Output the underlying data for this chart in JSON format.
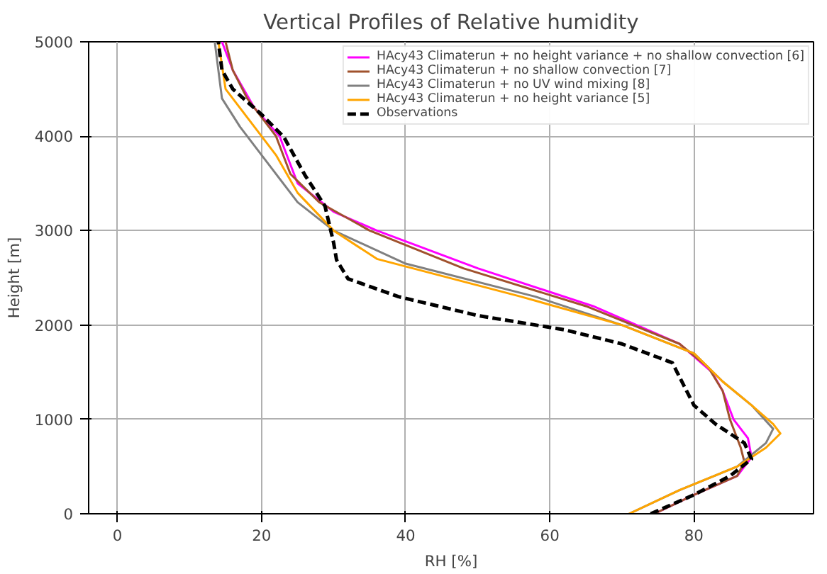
{
  "chart_data": {
    "type": "line",
    "title": "Vertical Profiles of Relative humidity",
    "xlabel": "RH [%]",
    "ylabel": "Height [m]",
    "xlim": [
      -4,
      96.6
    ],
    "ylim": [
      0,
      5000
    ],
    "xticks": [
      0,
      20,
      40,
      60,
      80
    ],
    "yticks": [
      0,
      1000,
      2000,
      3000,
      4000,
      5000
    ],
    "grid": true,
    "legend": "top right",
    "marker": "none",
    "series": [
      {
        "name": "HAcy43 Climaterun + no height variance + no shallow convection [6]",
        "color": "#ff00ff",
        "line_style": "solid",
        "x": [
          74.5,
          80,
          86,
          88,
          87.5,
          85.5,
          84,
          82.5,
          78,
          66,
          50,
          36,
          30,
          25,
          22.5,
          19,
          16,
          14.5
        ],
        "values": [
          0,
          200,
          400,
          600,
          800,
          1000,
          1300,
          1500,
          1800,
          2200,
          2600,
          3000,
          3200,
          3500,
          4000,
          4300,
          4700,
          5000
        ]
      },
      {
        "name": "HAcy43 Climaterun + no shallow convection [7]",
        "color": "#a0522d",
        "line_style": "solid",
        "x": [
          74.5,
          80,
          86,
          87,
          86.5,
          85,
          84,
          82,
          78,
          65,
          48,
          35,
          28,
          24,
          22,
          18,
          16,
          15
        ],
        "values": [
          0,
          200,
          400,
          550,
          700,
          1000,
          1300,
          1550,
          1800,
          2200,
          2600,
          3000,
          3300,
          3600,
          4000,
          4400,
          4700,
          5000
        ]
      },
      {
        "name": "HAcy43 Climaterun + no UV wind mixing [8]",
        "color": "#808080",
        "line_style": "solid",
        "x": [
          71,
          78,
          86,
          90,
          91,
          88,
          84,
          80,
          70,
          58,
          40,
          30,
          25,
          21,
          17,
          14.5,
          13.5
        ],
        "values": [
          0,
          250,
          500,
          750,
          900,
          1150,
          1400,
          1700,
          2000,
          2300,
          2650,
          3000,
          3300,
          3700,
          4100,
          4400,
          5000
        ]
      },
      {
        "name": "HAcy43 Climaterun + no height variance [5]",
        "color": "#ffa500",
        "line_style": "solid",
        "x": [
          71,
          78,
          86,
          90,
          92,
          91,
          88,
          84,
          80,
          70,
          56,
          36,
          30,
          25,
          22,
          18,
          15,
          14
        ],
        "values": [
          0,
          250,
          500,
          700,
          850,
          950,
          1150,
          1400,
          1700,
          2000,
          2300,
          2700,
          3000,
          3400,
          3800,
          4200,
          4500,
          5000
        ]
      },
      {
        "name": "Observations",
        "color": "#000000",
        "line_style": "dashed",
        "x": [
          74,
          80,
          85,
          88,
          87,
          83,
          80,
          79,
          77,
          70,
          62,
          50,
          39,
          32,
          30.4,
          30,
          28.8,
          26,
          23.1,
          20,
          16,
          14.5,
          14
        ],
        "values": [
          0,
          200,
          400,
          580,
          750,
          950,
          1150,
          1300,
          1600,
          1800,
          1950,
          2100,
          2300,
          2490,
          2690,
          2870,
          3260,
          3590,
          3990,
          4230,
          4500,
          4700,
          5000
        ]
      }
    ]
  }
}
